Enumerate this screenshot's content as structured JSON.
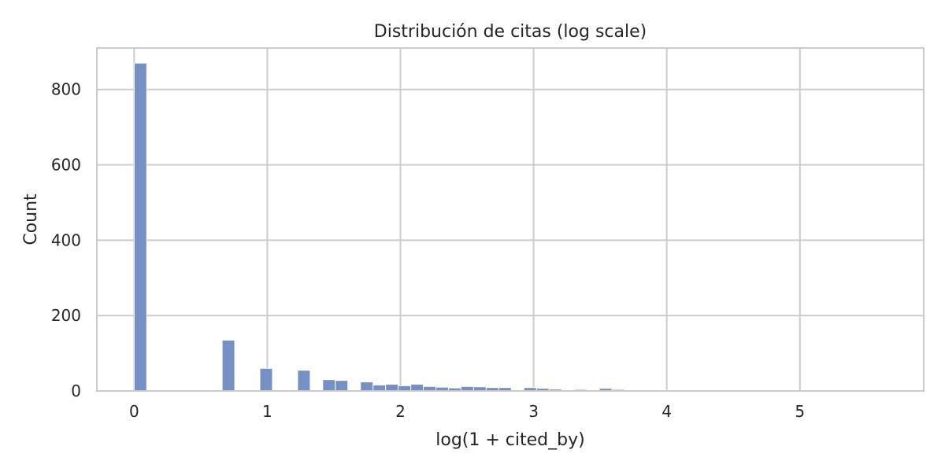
{
  "chart_data": {
    "type": "bar",
    "title": "Distribución de citas (log scale)",
    "xlabel": "log(1 + cited_by)",
    "ylabel": "Count",
    "xlim": [
      -0.28,
      5.93
    ],
    "ylim": [
      0,
      910
    ],
    "xticks": [
      0,
      1,
      2,
      3,
      4,
      5
    ],
    "yticks": [
      0,
      200,
      400,
      600,
      800
    ],
    "grid": true,
    "legend": "none",
    "bar_color": "#7590c4",
    "background": "#ffffff",
    "grid_color": "#cccccc",
    "bins": {
      "x_start": 0,
      "x_end": 5.76,
      "counts": [
        870,
        0,
        0,
        0,
        0,
        0,
        0,
        135,
        0,
        0,
        60,
        0,
        0,
        55,
        0,
        30,
        28,
        0,
        24,
        16,
        18,
        14,
        18,
        12,
        10,
        8,
        12,
        11,
        9,
        9,
        0,
        9,
        7,
        5,
        0,
        4,
        3,
        7,
        4,
        3,
        2,
        2,
        2,
        2,
        2,
        2,
        2,
        1,
        1,
        1,
        1,
        1,
        1,
        1,
        1,
        1,
        1,
        1,
        1,
        1,
        1
      ]
    }
  }
}
